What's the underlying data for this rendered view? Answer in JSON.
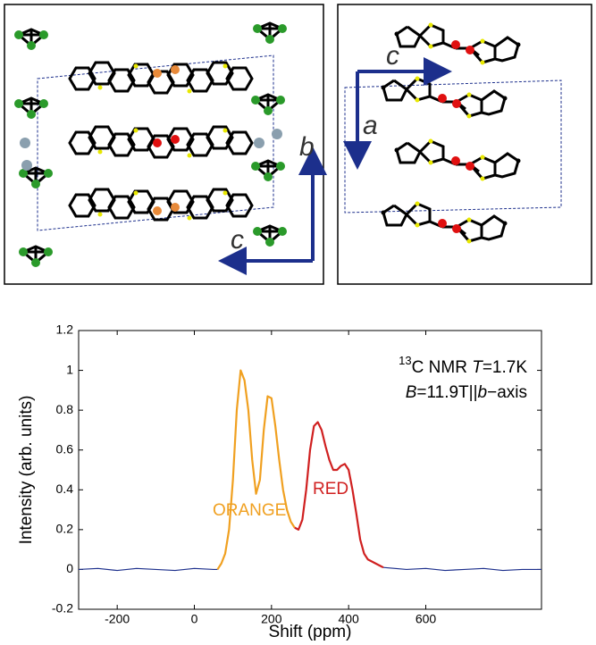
{
  "structure": {
    "left_axes": [
      "c",
      "b"
    ],
    "right_axes": [
      "c",
      "a"
    ]
  },
  "chart_data": {
    "type": "line",
    "x_label": "Shift (ppm)",
    "y_label": "Intensity (arb. units)",
    "annotation_lines": [
      [
        "13",
        "C NMR  ",
        "T",
        "=1.7K"
      ],
      [
        "B",
        "=11.9T||",
        "b",
        "−axis"
      ]
    ],
    "peak_labels": [
      "ORANGE",
      "RED"
    ],
    "x": [
      -300,
      -250,
      -200,
      -150,
      -100,
      -50,
      0,
      50,
      60,
      70,
      80,
      90,
      100,
      110,
      120,
      130,
      140,
      150,
      160,
      170,
      180,
      190,
      200,
      210,
      220,
      230,
      240,
      250,
      260,
      270,
      280,
      290,
      300,
      310,
      320,
      330,
      340,
      350,
      360,
      370,
      380,
      390,
      400,
      410,
      420,
      430,
      440,
      450,
      460,
      470,
      480,
      490,
      550,
      600,
      650,
      700,
      750,
      800,
      850,
      900
    ],
    "series": [
      {
        "color": "#1c2f8c",
        "values": [
          0,
          0.005,
          -0.005,
          0.005,
          0,
          -0.005,
          0.005,
          0,
          0.0,
          null,
          null,
          null,
          null,
          null,
          null,
          null,
          null,
          null,
          null,
          null,
          null,
          null,
          null,
          null,
          null,
          null,
          null,
          null,
          null,
          null,
          null,
          null,
          null,
          null,
          null,
          null,
          null,
          null,
          null,
          null,
          null,
          null,
          null,
          null,
          null,
          null,
          null,
          null,
          null,
          null,
          null,
          0.01,
          0,
          0.005,
          -0.005,
          0,
          0.005,
          -0.005,
          0,
          0
        ]
      },
      {
        "color": "#f0a020",
        "values": [
          null,
          null,
          null,
          null,
          null,
          null,
          null,
          null,
          0.0,
          0.03,
          0.08,
          0.2,
          0.45,
          0.8,
          1.0,
          0.95,
          0.8,
          0.55,
          0.38,
          0.45,
          0.7,
          0.87,
          0.86,
          0.72,
          0.55,
          0.4,
          0.3,
          0.24,
          0.21,
          null,
          null,
          null,
          null,
          null,
          null,
          null,
          null,
          null,
          null,
          null,
          null,
          null,
          null,
          null,
          null,
          null,
          null,
          null,
          null,
          null,
          null,
          null,
          null,
          null,
          null,
          null,
          null,
          null,
          null,
          null
        ]
      },
      {
        "color": "#d02020",
        "values": [
          null,
          null,
          null,
          null,
          null,
          null,
          null,
          null,
          null,
          null,
          null,
          null,
          null,
          null,
          null,
          null,
          null,
          null,
          null,
          null,
          null,
          null,
          null,
          null,
          null,
          null,
          null,
          null,
          0.21,
          0.2,
          0.25,
          0.4,
          0.6,
          0.72,
          0.74,
          0.7,
          0.62,
          0.55,
          0.5,
          0.5,
          0.52,
          0.53,
          0.5,
          0.4,
          0.28,
          0.15,
          0.08,
          0.05,
          0.04,
          0.03,
          0.02,
          0.01,
          null,
          null,
          null,
          null,
          null,
          null,
          null,
          null
        ]
      }
    ],
    "xlim": [
      -300,
      900
    ],
    "xticks": [
      -200,
      0,
      200,
      400,
      600
    ],
    "ylim": [
      -0.2,
      1.2
    ],
    "yticks": [
      -0.2,
      0,
      0.2,
      0.4,
      0.6,
      0.8,
      1,
      1.2
    ]
  }
}
